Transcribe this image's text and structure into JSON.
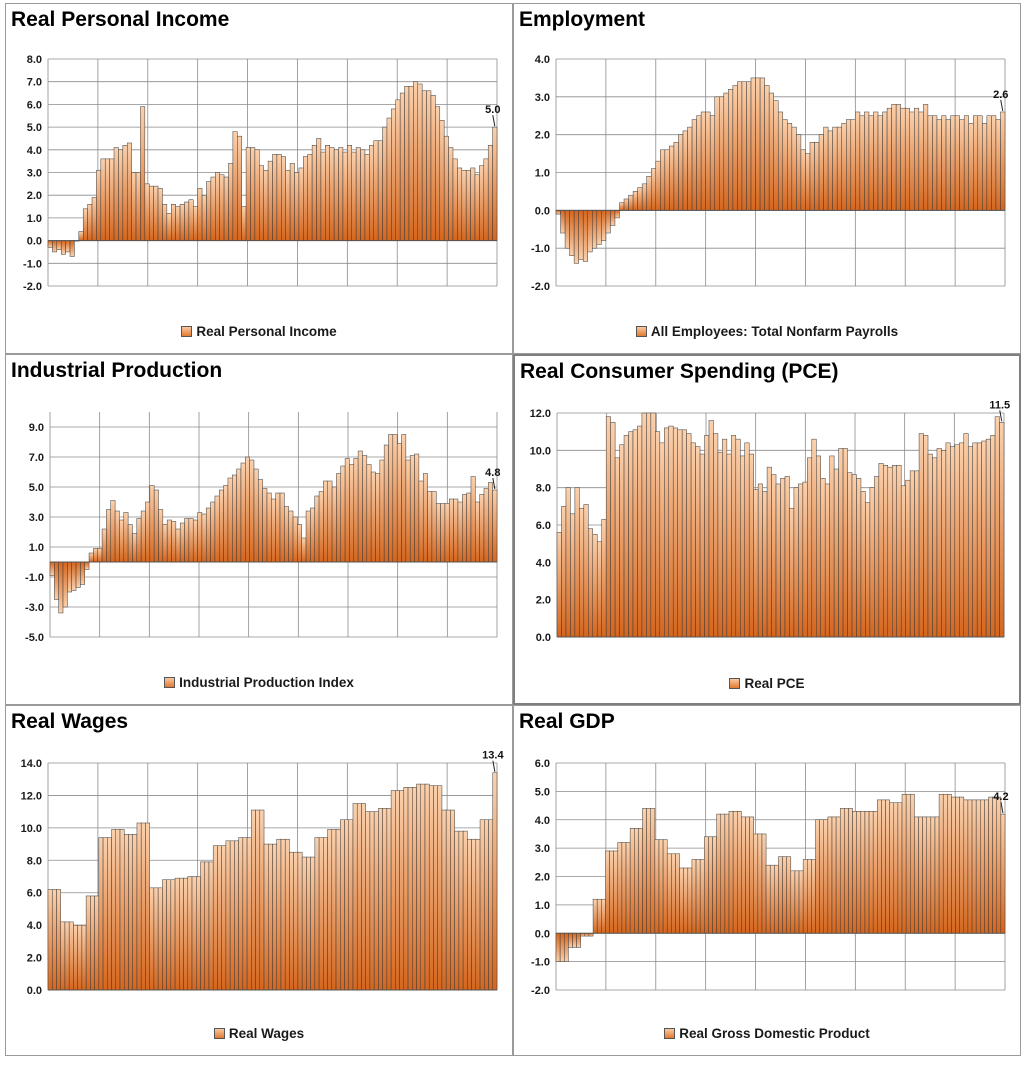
{
  "colors": {
    "bar_top": "#fbd1ad",
    "bar_bottom": "#d4661e",
    "bar_edge": "#3a3a3a",
    "grid": "#8c8c8c"
  },
  "chart_data": [
    {
      "type": "bar",
      "title": "Real Personal Income",
      "legend": "Real Personal Income",
      "ylim": [
        -2.0,
        8.0
      ],
      "yticks": [
        -2.0,
        -1.0,
        0.0,
        1.0,
        2.0,
        3.0,
        4.0,
        5.0,
        6.0,
        7.0,
        8.0
      ],
      "grid": true,
      "last_label": "5.0",
      "values": [
        -0.3,
        -0.5,
        -0.4,
        -0.6,
        -0.5,
        -0.7,
        0.0,
        0.4,
        1.4,
        1.6,
        1.9,
        3.1,
        3.6,
        3.6,
        3.6,
        4.1,
        4.0,
        4.2,
        4.3,
        3.0,
        3.0,
        5.9,
        2.5,
        2.4,
        2.4,
        2.3,
        1.6,
        1.2,
        1.6,
        1.5,
        1.6,
        1.7,
        1.8,
        1.5,
        2.3,
        2.0,
        2.6,
        2.8,
        3.0,
        2.9,
        2.8,
        3.4,
        4.8,
        4.6,
        1.5,
        4.1,
        4.1,
        4.0,
        3.3,
        3.1,
        3.5,
        3.8,
        3.8,
        3.7,
        3.1,
        3.4,
        3.0,
        3.2,
        3.7,
        3.8,
        4.2,
        4.5,
        3.9,
        4.2,
        4.1,
        4.0,
        4.1,
        3.9,
        4.2,
        3.9,
        4.1,
        4.0,
        3.8,
        4.2,
        4.4,
        4.4,
        5.0,
        5.4,
        5.8,
        6.2,
        6.5,
        6.8,
        6.8,
        7.0,
        6.9,
        6.6,
        6.6,
        6.4,
        5.9,
        5.3,
        4.6,
        4.1,
        3.6,
        3.2,
        3.1,
        3.1,
        3.2,
        2.9,
        3.3,
        3.6,
        4.2,
        5.0
      ]
    },
    {
      "type": "bar",
      "title": "Employment",
      "legend": "All Employees: Total Nonfarm Payrolls",
      "ylim": [
        -2.0,
        4.0
      ],
      "yticks": [
        -2.0,
        -1.0,
        0.0,
        1.0,
        2.0,
        3.0,
        4.0
      ],
      "grid": true,
      "last_label": "2.6",
      "values": [
        -0.1,
        -0.6,
        -1.0,
        -1.2,
        -1.4,
        -1.3,
        -1.35,
        -1.1,
        -1.0,
        -0.9,
        -0.8,
        -0.6,
        -0.4,
        -0.2,
        0.2,
        0.3,
        0.4,
        0.5,
        0.6,
        0.7,
        0.9,
        1.1,
        1.3,
        1.6,
        1.6,
        1.7,
        1.8,
        2.0,
        2.1,
        2.2,
        2.4,
        2.5,
        2.6,
        2.6,
        2.5,
        3.0,
        3.0,
        3.1,
        3.2,
        3.3,
        3.4,
        3.4,
        3.4,
        3.5,
        3.5,
        3.5,
        3.3,
        3.1,
        2.9,
        2.6,
        2.4,
        2.3,
        2.2,
        2.0,
        1.6,
        1.5,
        1.8,
        1.8,
        2.0,
        2.2,
        2.1,
        2.2,
        2.2,
        2.3,
        2.4,
        2.4,
        2.6,
        2.5,
        2.6,
        2.5,
        2.6,
        2.5,
        2.6,
        2.7,
        2.8,
        2.8,
        2.7,
        2.7,
        2.6,
        2.7,
        2.6,
        2.8,
        2.5,
        2.5,
        2.4,
        2.5,
        2.4,
        2.5,
        2.5,
        2.4,
        2.5,
        2.3,
        2.5,
        2.5,
        2.3,
        2.5,
        2.5,
        2.4,
        2.6
      ]
    },
    {
      "type": "bar",
      "title": "Industrial Production",
      "legend": "Industrial Production Index",
      "ylim": [
        -5.0,
        10.0
      ],
      "yticks": [
        -5.0,
        -3.0,
        -1.0,
        1.0,
        3.0,
        5.0,
        7.0,
        9.0
      ],
      "grid": true,
      "last_label": "4.8",
      "values": [
        -0.9,
        -2.5,
        -3.4,
        -3.0,
        -2.0,
        -1.9,
        -1.7,
        -1.5,
        -0.5,
        0.6,
        0.9,
        0.9,
        2.2,
        3.5,
        4.1,
        3.4,
        2.8,
        3.3,
        2.5,
        1.9,
        2.9,
        3.4,
        4.0,
        5.1,
        4.8,
        3.5,
        2.5,
        2.8,
        2.7,
        2.2,
        2.6,
        2.9,
        2.9,
        2.8,
        3.3,
        3.2,
        3.6,
        4.0,
        4.4,
        4.8,
        5.1,
        5.6,
        5.8,
        6.2,
        6.6,
        7.0,
        6.8,
        6.2,
        5.5,
        4.9,
        4.6,
        4.2,
        4.6,
        4.6,
        3.7,
        3.4,
        3.0,
        2.5,
        1.6,
        3.4,
        3.6,
        4.4,
        4.7,
        5.4,
        5.4,
        5.0,
        5.9,
        6.4,
        6.9,
        6.5,
        6.9,
        7.4,
        7.1,
        6.5,
        6.0,
        5.9,
        6.8,
        7.8,
        8.5,
        8.5,
        7.9,
        8.5,
        6.8,
        7.1,
        7.2,
        5.4,
        5.9,
        4.7,
        4.7,
        3.9,
        3.9,
        3.9,
        4.2,
        4.2,
        4.0,
        4.5,
        4.6,
        5.7,
        4.0,
        4.5,
        4.9,
        5.3,
        4.8
      ]
    },
    {
      "type": "bar",
      "title": "Real Consumer Spending (PCE)",
      "legend": "Real PCE",
      "ylim": [
        0.0,
        12.0
      ],
      "yticks": [
        0.0,
        2.0,
        4.0,
        6.0,
        8.0,
        10.0,
        12.0
      ],
      "grid": true,
      "last_label": "11.5",
      "values": [
        5.6,
        7.0,
        8.0,
        6.6,
        8.0,
        6.9,
        7.1,
        5.8,
        5.5,
        5.1,
        6.3,
        11.8,
        11.5,
        9.6,
        10.3,
        10.8,
        11.0,
        11.1,
        11.3,
        12.0,
        12.0,
        12.0,
        11.0,
        10.4,
        11.2,
        11.3,
        11.2,
        11.1,
        11.1,
        10.9,
        10.4,
        10.2,
        9.8,
        10.8,
        11.6,
        10.9,
        9.9,
        10.6,
        9.8,
        10.8,
        10.6,
        9.7,
        10.4,
        9.8,
        7.9,
        8.2,
        7.8,
        9.1,
        8.7,
        8.2,
        8.5,
        8.6,
        6.9,
        8.0,
        8.2,
        8.3,
        9.6,
        10.6,
        9.7,
        8.5,
        8.2,
        9.7,
        9.0,
        10.1,
        10.1,
        8.8,
        8.7,
        8.5,
        7.8,
        7.2,
        8.0,
        8.6,
        9.3,
        9.2,
        9.1,
        9.2,
        9.2,
        8.1,
        8.4,
        8.9,
        8.9,
        10.9,
        10.8,
        9.8,
        9.6,
        10.1,
        10.0,
        10.4,
        10.2,
        10.3,
        10.4,
        10.9,
        10.2,
        10.4,
        10.4,
        10.5,
        10.6,
        10.8,
        11.8,
        11.5
      ]
    },
    {
      "type": "bar",
      "title": "Real Wages",
      "legend": "Real Wages",
      "ylim": [
        0.0,
        14.0
      ],
      "yticks": [
        0.0,
        2.0,
        4.0,
        6.0,
        8.0,
        10.0,
        12.0,
        14.0
      ],
      "grid": true,
      "last_label": "13.4",
      "values": [
        6.2,
        6.2,
        6.2,
        4.2,
        4.2,
        4.2,
        4.0,
        4.0,
        4.0,
        5.8,
        5.8,
        5.8,
        9.4,
        9.4,
        9.4,
        9.9,
        9.9,
        9.9,
        9.6,
        9.6,
        9.6,
        10.3,
        10.3,
        10.3,
        6.3,
        6.3,
        6.3,
        6.8,
        6.8,
        6.8,
        6.9,
        6.9,
        6.9,
        7.0,
        7.0,
        7.0,
        7.9,
        7.9,
        7.9,
        8.9,
        8.9,
        8.9,
        9.2,
        9.2,
        9.2,
        9.4,
        9.4,
        9.4,
        11.1,
        11.1,
        11.1,
        9.0,
        9.0,
        9.0,
        9.3,
        9.3,
        9.3,
        8.5,
        8.5,
        8.5,
        8.2,
        8.2,
        8.2,
        9.4,
        9.4,
        9.4,
        9.9,
        9.9,
        9.9,
        10.5,
        10.5,
        10.5,
        11.5,
        11.5,
        11.5,
        11.0,
        11.0,
        11.0,
        11.2,
        11.2,
        11.2,
        12.3,
        12.3,
        12.3,
        12.5,
        12.5,
        12.5,
        12.7,
        12.7,
        12.7,
        12.6,
        12.6,
        12.6,
        11.1,
        11.1,
        11.1,
        9.8,
        9.8,
        9.8,
        9.3,
        9.3,
        9.3,
        10.5,
        10.5,
        10.5,
        13.4
      ]
    },
    {
      "type": "bar",
      "title": "Real GDP",
      "legend": "Real Gross Domestic Product",
      "ylim": [
        -2.0,
        6.0
      ],
      "yticks": [
        -2.0,
        -1.0,
        0.0,
        1.0,
        2.0,
        3.0,
        4.0,
        5.0,
        6.0
      ],
      "grid": true,
      "last_label": "4.2",
      "values": [
        -1.0,
        -1.0,
        -1.0,
        -0.5,
        -0.5,
        -0.5,
        -0.1,
        -0.1,
        -0.1,
        1.2,
        1.2,
        1.2,
        2.9,
        2.9,
        2.9,
        3.2,
        3.2,
        3.2,
        3.7,
        3.7,
        3.7,
        4.4,
        4.4,
        4.4,
        3.3,
        3.3,
        3.3,
        2.8,
        2.8,
        2.8,
        2.3,
        2.3,
        2.3,
        2.6,
        2.6,
        2.6,
        3.4,
        3.4,
        3.4,
        4.2,
        4.2,
        4.2,
        4.3,
        4.3,
        4.3,
        4.1,
        4.1,
        4.1,
        3.5,
        3.5,
        3.5,
        2.4,
        2.4,
        2.4,
        2.7,
        2.7,
        2.7,
        2.2,
        2.2,
        2.2,
        2.6,
        2.6,
        2.6,
        4.0,
        4.0,
        4.0,
        4.1,
        4.1,
        4.1,
        4.4,
        4.4,
        4.4,
        4.3,
        4.3,
        4.3,
        4.3,
        4.3,
        4.3,
        4.7,
        4.7,
        4.7,
        4.6,
        4.6,
        4.6,
        4.9,
        4.9,
        4.9,
        4.1,
        4.1,
        4.1,
        4.1,
        4.1,
        4.1,
        4.9,
        4.9,
        4.9,
        4.8,
        4.8,
        4.8,
        4.7,
        4.7,
        4.7,
        4.7,
        4.7,
        4.7,
        4.8,
        4.8,
        4.8,
        4.2
      ]
    }
  ]
}
